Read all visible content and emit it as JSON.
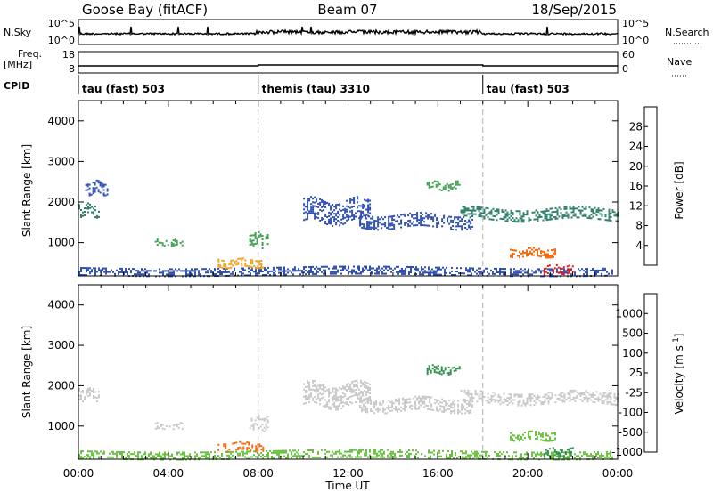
{
  "header": {
    "station": "Goose Bay (fitACF)",
    "beam": "Beam 07",
    "date": "18/Sep/2015"
  },
  "strip_labels": {
    "nsky": "N.Sky",
    "nsky_top": "10^5",
    "nsky_bottom": "10^0",
    "nsearch": "N.Search",
    "nsearch_top": "10^5",
    "nsearch_bottom": "10^0",
    "freq": "Freq.",
    "freq_unit": "[MHz]",
    "freq_top": "18",
    "freq_bottom": "8",
    "nave": "Nave",
    "nave_top": "60",
    "nave_bottom": "0",
    "cpid": "CPID"
  },
  "cpid_segments": [
    {
      "label": "tau (fast) 503",
      "start_hour": 0
    },
    {
      "label": "themis (tau) 3310",
      "start_hour": 8
    },
    {
      "label": "tau (fast) 503",
      "start_hour": 18
    }
  ],
  "colors": {
    "power_scale": [
      "#1f2fd9",
      "#2f4fb0",
      "#2f7f6a",
      "#3fa050",
      "#d8d030",
      "#f0a020",
      "#f06a10",
      "#e01818"
    ],
    "velocity_scale": [
      "#e01818",
      "#f06a10",
      "#f0a020",
      "#c8c8c8",
      "#c8c8c8",
      "#6ac040",
      "#2f8f4a",
      "#2050c0"
    ],
    "guide_line": "#b0b0b0"
  },
  "chart_data": [
    {
      "type": "heatmap",
      "name": "power",
      "ylabel": "Slant Range [km]",
      "ylim": [
        180,
        4500
      ],
      "yticks": [
        "1000",
        "2000",
        "3000",
        "4000"
      ],
      "xlim": [
        0,
        24
      ],
      "colorbar_label": "Power [dB]",
      "colorbar_ticks": [
        "4",
        "8",
        "12",
        "16",
        "20",
        "24",
        "28"
      ],
      "colorbar_range": [
        0,
        32
      ],
      "echo_regions": [
        {
          "t0": 0.0,
          "t1": 0.9,
          "r0": 1650,
          "r1": 1950,
          "value": 8
        },
        {
          "t0": 0.3,
          "t1": 1.3,
          "r0": 2200,
          "r1": 2500,
          "value": 6
        },
        {
          "t0": 3.4,
          "t1": 4.6,
          "r0": 920,
          "r1": 1080,
          "value": 14
        },
        {
          "t0": 7.6,
          "t1": 8.4,
          "r0": 900,
          "r1": 1250,
          "value": 12
        },
        {
          "t0": 0.0,
          "t1": 23.8,
          "r0": 220,
          "r1": 400,
          "value": 6
        },
        {
          "t0": 6.2,
          "t1": 8.2,
          "r0": 420,
          "r1": 600,
          "value": 20
        },
        {
          "t0": 10.0,
          "t1": 13.0,
          "r0": 1500,
          "r1": 2050,
          "value": 6
        },
        {
          "t0": 12.5,
          "t1": 17.5,
          "r0": 1380,
          "r1": 1700,
          "value": 6
        },
        {
          "t0": 15.5,
          "t1": 17.0,
          "r0": 2300,
          "r1": 2500,
          "value": 12
        },
        {
          "t0": 17.0,
          "t1": 24.0,
          "r0": 1550,
          "r1": 1850,
          "value": 10
        },
        {
          "t0": 19.2,
          "t1": 21.2,
          "r0": 680,
          "r1": 860,
          "value": 24
        },
        {
          "t0": 20.7,
          "t1": 22.0,
          "r0": 270,
          "r1": 450,
          "value": 30
        }
      ]
    },
    {
      "type": "heatmap",
      "name": "velocity",
      "ylabel": "Slant Range [km]",
      "ylim": [
        180,
        4500
      ],
      "yticks": [
        "1000",
        "2000",
        "3000",
        "4000"
      ],
      "xlabel": "Time UT",
      "xlim": [
        0,
        24
      ],
      "xticks": [
        "00:00",
        "04:00",
        "08:00",
        "12:00",
        "16:00",
        "20:00",
        "00:00"
      ],
      "colorbar_label": "Velocity [m s^-1]",
      "colorbar_ticks": [
        "1000",
        "500",
        "100",
        "25",
        "-25",
        "-100",
        "-500",
        "-1000"
      ],
      "echo_regions": [
        {
          "t0": 0.0,
          "t1": 0.9,
          "r0": 1650,
          "r1": 1950,
          "value": 0
        },
        {
          "t0": 3.4,
          "t1": 4.6,
          "r0": 920,
          "r1": 1080,
          "value": 0
        },
        {
          "t0": 7.6,
          "t1": 8.4,
          "r0": 900,
          "r1": 1250,
          "value": 0
        },
        {
          "t0": 0.0,
          "t1": 23.8,
          "r0": 220,
          "r1": 400,
          "value": 50
        },
        {
          "t0": 6.2,
          "t1": 8.2,
          "r0": 420,
          "r1": 600,
          "value": -150
        },
        {
          "t0": 10.0,
          "t1": 13.0,
          "r0": 1500,
          "r1": 2050,
          "value": 0
        },
        {
          "t0": 12.5,
          "t1": 17.5,
          "r0": 1380,
          "r1": 1700,
          "value": 0
        },
        {
          "t0": 15.5,
          "t1": 17.0,
          "r0": 2300,
          "r1": 2500,
          "value": 300
        },
        {
          "t0": 17.0,
          "t1": 24.0,
          "r0": 1550,
          "r1": 1850,
          "value": 0
        },
        {
          "t0": 19.2,
          "t1": 21.2,
          "r0": 680,
          "r1": 860,
          "value": 100
        },
        {
          "t0": 20.7,
          "t1": 22.0,
          "r0": 270,
          "r1": 450,
          "value": 150
        }
      ]
    }
  ]
}
